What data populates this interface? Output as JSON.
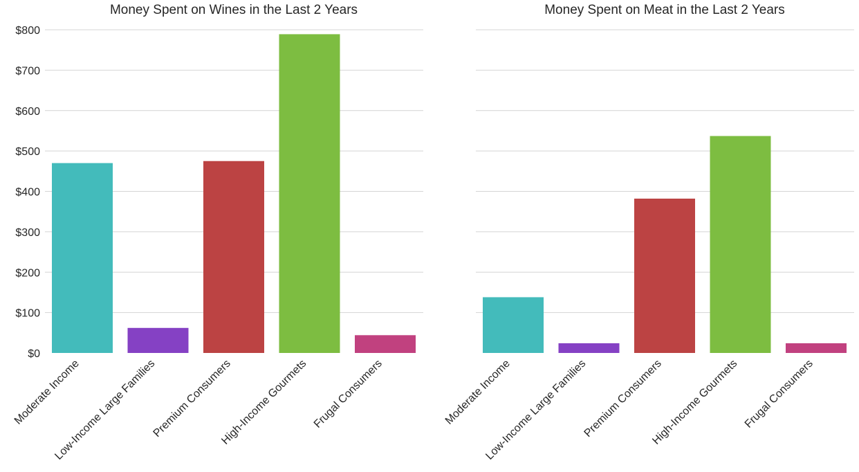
{
  "chart_data": [
    {
      "type": "bar",
      "title": "Money Spent on Wines in the Last 2 Years",
      "categories": [
        "Moderate Income",
        "Low-Income Large Families",
        "Premium Consumers",
        "High-Income Gourmets",
        "Frugal Consumers"
      ],
      "values": [
        470,
        62,
        475,
        789,
        44
      ],
      "colors": [
        "#43bbbb",
        "#8541c4",
        "#bc4343",
        "#7dbd41",
        "#c1417f"
      ],
      "ylim": [
        0,
        800
      ],
      "yticks": [
        "$0",
        "$100",
        "$200",
        "$300",
        "$400",
        "$500",
        "$600",
        "$700",
        "$800"
      ],
      "xlabel": "",
      "ylabel": "",
      "grid": "horizontal",
      "show_yticks": true
    },
    {
      "type": "bar",
      "title": "Money Spent on Meat in the Last 2 Years",
      "categories": [
        "Moderate Income",
        "Low-Income Large Families",
        "Premium Consumers",
        "High-Income Gourmets",
        "Frugal Consumers"
      ],
      "values": [
        138,
        24,
        382,
        537,
        24
      ],
      "colors": [
        "#43bbbb",
        "#8541c4",
        "#bc4343",
        "#7dbd41",
        "#c1417f"
      ],
      "ylim": [
        0,
        800
      ],
      "yticks": [],
      "xlabel": "",
      "ylabel": "",
      "grid": "horizontal",
      "show_yticks": false
    }
  ]
}
